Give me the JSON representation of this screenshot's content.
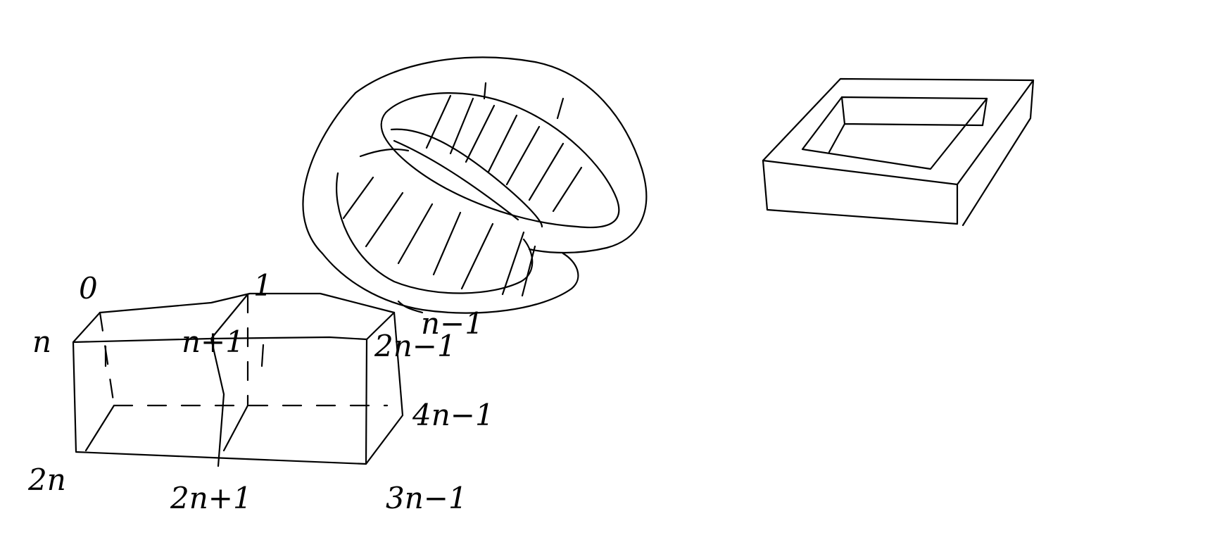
{
  "canvas": {
    "background": "#ffffff",
    "ink": "#000000"
  },
  "drawings": [
    {
      "name": "box",
      "labels": {
        "top_left": "0",
        "top_right": "1",
        "mid_left": "n",
        "mid_center": "n+1",
        "mid_right": "2n−1",
        "top_far_right": "n−1",
        "right_bottom": "4n−1",
        "bottom_left": "2n",
        "bottom_center": "2n+1",
        "bottom_right": "3n−1"
      }
    },
    {
      "name": "twisted-ring",
      "labels": {}
    },
    {
      "name": "square-frame",
      "labels": {}
    }
  ]
}
